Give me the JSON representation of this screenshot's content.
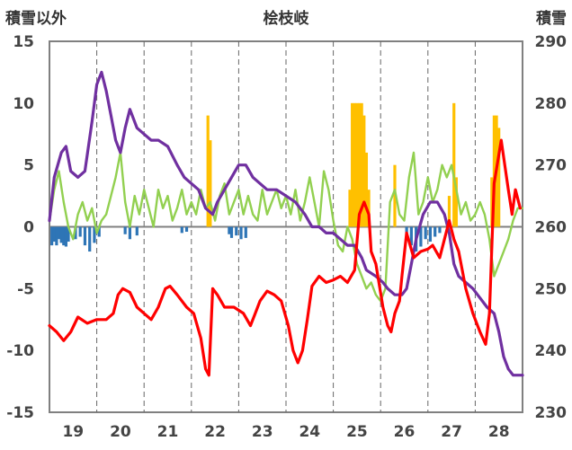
{
  "chart_data": {
    "type": "line",
    "title": "桧枝岐",
    "ylabel_left": "積雪以外",
    "ylabel_right": "積雪",
    "x_range": [
      18.5,
      28.5
    ],
    "x_ticks": [
      "19",
      "20",
      "21",
      "22",
      "23",
      "24",
      "25",
      "26",
      "27",
      "28"
    ],
    "y_left": {
      "min": -15,
      "max": 15,
      "ticks": [
        "15",
        "10",
        "5",
        "0",
        "-5",
        "-10",
        "-15"
      ]
    },
    "y_right": {
      "min": 230,
      "max": 290,
      "ticks": [
        "290",
        "280",
        "270",
        "260",
        "250",
        "240",
        "230"
      ]
    },
    "colors": {
      "temperature": "#ff0000",
      "snow_depth": "#7030a0",
      "green_series": "#92d050",
      "precip_bars": "#ffc000",
      "neg_bars": "#2e75b6",
      "frame": "#808080"
    },
    "series": [
      {
        "name": "red",
        "axis": "left",
        "points": [
          [
            18.5,
            -8
          ],
          [
            18.65,
            -8.5
          ],
          [
            18.8,
            -9.2
          ],
          [
            18.95,
            -8.5
          ],
          [
            19.1,
            -7.3
          ],
          [
            19.3,
            -7.8
          ],
          [
            19.5,
            -7.5
          ],
          [
            19.7,
            -7.5
          ],
          [
            19.85,
            -7
          ],
          [
            19.95,
            -5.5
          ],
          [
            20.05,
            -5
          ],
          [
            20.2,
            -5.3
          ],
          [
            20.35,
            -6.5
          ],
          [
            20.5,
            -7
          ],
          [
            20.65,
            -7.5
          ],
          [
            20.8,
            -6.5
          ],
          [
            20.95,
            -5
          ],
          [
            21.05,
            -4.8
          ],
          [
            21.2,
            -5.5
          ],
          [
            21.4,
            -6.5
          ],
          [
            21.55,
            -7
          ],
          [
            21.7,
            -9
          ],
          [
            21.8,
            -11.5
          ],
          [
            21.87,
            -12
          ],
          [
            21.95,
            -5
          ],
          [
            22.05,
            -5.5
          ],
          [
            22.2,
            -6.5
          ],
          [
            22.4,
            -6.5
          ],
          [
            22.6,
            -7
          ],
          [
            22.75,
            -8
          ],
          [
            22.85,
            -7
          ],
          [
            22.95,
            -6
          ],
          [
            23.1,
            -5.2
          ],
          [
            23.25,
            -5.5
          ],
          [
            23.4,
            -6
          ],
          [
            23.55,
            -8
          ],
          [
            23.65,
            -10
          ],
          [
            23.75,
            -11
          ],
          [
            23.85,
            -10
          ],
          [
            23.95,
            -7.5
          ],
          [
            24.05,
            -4.8
          ],
          [
            24.2,
            -4
          ],
          [
            24.35,
            -4.5
          ],
          [
            24.5,
            -4.3
          ],
          [
            24.65,
            -4
          ],
          [
            24.8,
            -4.5
          ],
          [
            24.95,
            -3.5
          ],
          [
            25.05,
            1
          ],
          [
            25.15,
            2
          ],
          [
            25.25,
            1
          ],
          [
            25.3,
            -2
          ],
          [
            25.4,
            -3
          ],
          [
            25.55,
            -6.5
          ],
          [
            25.65,
            -8
          ],
          [
            25.72,
            -8.5
          ],
          [
            25.8,
            -7
          ],
          [
            25.9,
            -6
          ],
          [
            25.95,
            -4
          ],
          [
            26.05,
            -0.5
          ],
          [
            26.2,
            -2.5
          ],
          [
            26.35,
            -2
          ],
          [
            26.5,
            -1.8
          ],
          [
            26.6,
            -1.5
          ],
          [
            26.75,
            -2.5
          ],
          [
            26.85,
            -1
          ],
          [
            26.95,
            0.5
          ],
          [
            27.05,
            -1
          ],
          [
            27.15,
            -2
          ],
          [
            27.3,
            -5
          ],
          [
            27.45,
            -7
          ],
          [
            27.6,
            -8.5
          ],
          [
            27.72,
            -9.5
          ],
          [
            27.8,
            -7
          ],
          [
            27.9,
            3.5
          ],
          [
            28.05,
            7
          ],
          [
            28.2,
            3
          ],
          [
            28.28,
            1
          ],
          [
            28.35,
            3
          ],
          [
            28.45,
            1.5
          ]
        ]
      },
      {
        "name": "purple",
        "axis": "right",
        "points": [
          [
            18.5,
            261
          ],
          [
            18.6,
            268
          ],
          [
            18.75,
            272
          ],
          [
            18.85,
            273
          ],
          [
            18.95,
            269
          ],
          [
            19.1,
            268
          ],
          [
            19.25,
            269
          ],
          [
            19.4,
            277
          ],
          [
            19.5,
            283
          ],
          [
            19.6,
            285
          ],
          [
            19.7,
            282
          ],
          [
            19.8,
            278
          ],
          [
            19.9,
            274
          ],
          [
            20.0,
            272
          ],
          [
            20.1,
            276
          ],
          [
            20.2,
            279
          ],
          [
            20.35,
            276
          ],
          [
            20.5,
            275
          ],
          [
            20.65,
            274
          ],
          [
            20.8,
            274
          ],
          [
            21.0,
            273
          ],
          [
            21.2,
            270
          ],
          [
            21.35,
            268
          ],
          [
            21.5,
            267
          ],
          [
            21.65,
            266
          ],
          [
            21.8,
            263
          ],
          [
            21.95,
            262
          ],
          [
            22.05,
            264
          ],
          [
            22.2,
            266
          ],
          [
            22.35,
            268
          ],
          [
            22.5,
            270
          ],
          [
            22.65,
            270
          ],
          [
            22.8,
            268
          ],
          [
            22.95,
            267
          ],
          [
            23.1,
            266
          ],
          [
            23.3,
            266
          ],
          [
            23.5,
            265
          ],
          [
            23.7,
            264
          ],
          [
            23.9,
            262
          ],
          [
            24.05,
            260
          ],
          [
            24.2,
            260
          ],
          [
            24.35,
            259
          ],
          [
            24.5,
            259
          ],
          [
            24.65,
            258
          ],
          [
            24.8,
            257
          ],
          [
            24.95,
            257
          ],
          [
            25.1,
            255
          ],
          [
            25.2,
            253
          ],
          [
            25.4,
            252
          ],
          [
            25.55,
            251
          ],
          [
            25.65,
            250
          ],
          [
            25.8,
            249
          ],
          [
            25.95,
            249
          ],
          [
            26.05,
            250
          ],
          [
            26.15,
            254
          ],
          [
            26.25,
            258
          ],
          [
            26.4,
            262
          ],
          [
            26.55,
            264
          ],
          [
            26.7,
            264
          ],
          [
            26.85,
            262
          ],
          [
            26.95,
            259
          ],
          [
            27.05,
            254
          ],
          [
            27.15,
            252
          ],
          [
            27.3,
            251
          ],
          [
            27.45,
            250
          ],
          [
            27.55,
            249
          ],
          [
            27.65,
            248
          ],
          [
            27.75,
            247
          ],
          [
            27.9,
            246
          ],
          [
            28.0,
            243
          ],
          [
            28.1,
            239
          ],
          [
            28.2,
            237
          ],
          [
            28.3,
            236
          ],
          [
            28.5,
            236
          ]
        ]
      },
      {
        "name": "green",
        "axis": "left",
        "points": [
          [
            18.5,
            0.5
          ],
          [
            18.6,
            3
          ],
          [
            18.7,
            4.5
          ],
          [
            18.8,
            2
          ],
          [
            18.9,
            0
          ],
          [
            19.0,
            -1
          ],
          [
            19.1,
            1
          ],
          [
            19.2,
            2
          ],
          [
            19.3,
            0.5
          ],
          [
            19.4,
            1.5
          ],
          [
            19.5,
            -0.5
          ],
          [
            19.6,
            0.5
          ],
          [
            19.7,
            1
          ],
          [
            19.8,
            2.5
          ],
          [
            19.9,
            4
          ],
          [
            20.0,
            6
          ],
          [
            20.1,
            2
          ],
          [
            20.2,
            0
          ],
          [
            20.3,
            2.5
          ],
          [
            20.4,
            1
          ],
          [
            20.5,
            3
          ],
          [
            20.6,
            1.5
          ],
          [
            20.7,
            0
          ],
          [
            20.8,
            3
          ],
          [
            20.9,
            1.5
          ],
          [
            21.0,
            2.5
          ],
          [
            21.1,
            0.5
          ],
          [
            21.2,
            1.5
          ],
          [
            21.3,
            3
          ],
          [
            21.4,
            1
          ],
          [
            21.5,
            2
          ],
          [
            21.6,
            1
          ],
          [
            21.7,
            3
          ],
          [
            21.8,
            1.5
          ],
          [
            21.9,
            2
          ],
          [
            22.0,
            0.5
          ],
          [
            22.1,
            2.5
          ],
          [
            22.2,
            3.5
          ],
          [
            22.3,
            1
          ],
          [
            22.4,
            2
          ],
          [
            22.5,
            3
          ],
          [
            22.6,
            1
          ],
          [
            22.7,
            2.5
          ],
          [
            22.8,
            1
          ],
          [
            22.9,
            0.5
          ],
          [
            23.0,
            3
          ],
          [
            23.1,
            1
          ],
          [
            23.2,
            2
          ],
          [
            23.3,
            3
          ],
          [
            23.4,
            1.5
          ],
          [
            23.5,
            2.5
          ],
          [
            23.6,
            1
          ],
          [
            23.7,
            3
          ],
          [
            23.8,
            0.5
          ],
          [
            23.9,
            2
          ],
          [
            24.0,
            4
          ],
          [
            24.1,
            2
          ],
          [
            24.2,
            0
          ],
          [
            24.3,
            4.5
          ],
          [
            24.4,
            3
          ],
          [
            24.5,
            0.5
          ],
          [
            24.6,
            -1.5
          ],
          [
            24.7,
            -2
          ],
          [
            24.8,
            0
          ],
          [
            24.9,
            -1
          ],
          [
            25.0,
            -3
          ],
          [
            25.1,
            -4
          ],
          [
            25.2,
            -5
          ],
          [
            25.3,
            -4.5
          ],
          [
            25.4,
            -5.5
          ],
          [
            25.5,
            -6
          ],
          [
            25.6,
            -5
          ],
          [
            25.7,
            2
          ],
          [
            25.8,
            3
          ],
          [
            25.9,
            1
          ],
          [
            26.0,
            0.5
          ],
          [
            26.1,
            4
          ],
          [
            26.2,
            6
          ],
          [
            26.3,
            1
          ],
          [
            26.4,
            2
          ],
          [
            26.5,
            4
          ],
          [
            26.6,
            2
          ],
          [
            26.7,
            3
          ],
          [
            26.8,
            5
          ],
          [
            26.9,
            4
          ],
          [
            27.0,
            5
          ],
          [
            27.1,
            3
          ],
          [
            27.2,
            1
          ],
          [
            27.3,
            2
          ],
          [
            27.4,
            0.5
          ],
          [
            27.5,
            1
          ],
          [
            27.6,
            2
          ],
          [
            27.7,
            1
          ],
          [
            27.8,
            -1
          ],
          [
            27.9,
            -4
          ],
          [
            28.0,
            -3
          ],
          [
            28.1,
            -2
          ],
          [
            28.2,
            -1
          ],
          [
            28.3,
            0.5
          ],
          [
            28.4,
            1.5
          ],
          [
            28.5,
            1.5
          ]
        ]
      }
    ],
    "bars": [
      {
        "name": "yellow",
        "axis": "left",
        "x": [
          21.85,
          21.9,
          24.85,
          24.9,
          24.95,
          25.0,
          25.05,
          25.1,
          25.15,
          25.2,
          25.25,
          25.8,
          26.95,
          27.05,
          27.1,
          27.85,
          27.9,
          27.95,
          28.0
        ],
        "values": [
          9,
          7,
          3,
          10,
          10,
          10,
          10,
          10,
          9,
          6,
          3,
          5,
          2.5,
          10,
          4,
          4,
          9,
          9,
          8
        ]
      },
      {
        "name": "blue",
        "axis": "left",
        "x": [
          18.55,
          18.6,
          18.65,
          18.7,
          18.75,
          18.8,
          18.85,
          18.9,
          19.05,
          19.15,
          19.25,
          19.35,
          19.45,
          19.55,
          20.1,
          20.2,
          20.35,
          21.3,
          21.4,
          22.3,
          22.35,
          22.45,
          22.55,
          22.65,
          26.05,
          26.15,
          26.25,
          26.35,
          26.45,
          26.55,
          26.65,
          26.75
        ],
        "values": [
          -1.5,
          -1.2,
          -1.5,
          -1,
          -1.3,
          -1.5,
          -1.6,
          -1.2,
          -1,
          -0.8,
          -1.5,
          -2,
          -1.3,
          -0.8,
          -0.6,
          -1,
          -0.7,
          -0.5,
          -0.4,
          -0.6,
          -0.9,
          -0.7,
          -1,
          -0.9,
          -1,
          -1.5,
          -2,
          -1.6,
          -1,
          -1.2,
          -0.8,
          -0.5
        ]
      }
    ]
  }
}
